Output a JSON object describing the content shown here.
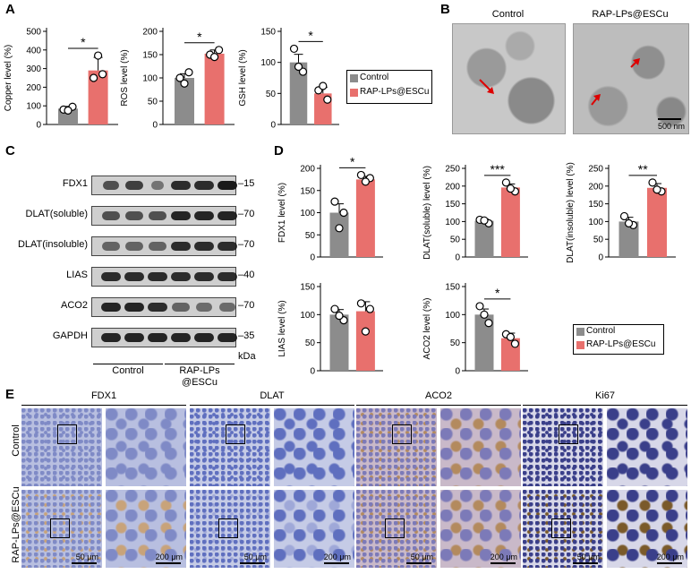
{
  "panels": {
    "A": "A",
    "B": "B",
    "C": "C",
    "D": "D",
    "E": "E"
  },
  "legend": {
    "control": "Control",
    "treated": "RAP-LPs@ESCu",
    "control_color": "#8c8c8c",
    "treated_color": "#e8706d"
  },
  "chart_data": [
    {
      "type": "bar",
      "id": "copper",
      "ylabel": "Copper level (%)",
      "ylim": [
        0,
        500
      ],
      "yticks": [
        0,
        100,
        200,
        300,
        400,
        500
      ],
      "categories": [
        "Control",
        "RAP-LPs@ESCu"
      ],
      "values": [
        85,
        290
      ],
      "errors": [
        12,
        70
      ],
      "points": [
        [
          80,
          95,
          75
        ],
        [
          250,
          270,
          370
        ]
      ],
      "significance": "*"
    },
    {
      "type": "bar",
      "id": "ros",
      "ylabel": "ROS level (%)",
      "ylim": [
        0,
        200
      ],
      "yticks": [
        0,
        50,
        100,
        150,
        200
      ],
      "categories": [
        "Control",
        "RAP-LPs@ESCu"
      ],
      "values": [
        100,
        152
      ],
      "errors": [
        9,
        8
      ],
      "points": [
        [
          100,
          112,
          88
        ],
        [
          150,
          160,
          145
        ]
      ],
      "significance": "*"
    },
    {
      "type": "bar",
      "id": "gsh",
      "ylabel": "GSH level (%)",
      "ylim": [
        0,
        150
      ],
      "yticks": [
        0,
        50,
        100,
        150
      ],
      "categories": [
        "Control",
        "RAP-LPs@ESCu"
      ],
      "values": [
        100,
        50
      ],
      "errors": [
        13,
        10
      ],
      "points": [
        [
          122,
          85,
          93
        ],
        [
          55,
          40,
          62
        ]
      ],
      "significance": "*"
    },
    {
      "type": "bar",
      "id": "fdx1",
      "ylabel": "FDX1 level (%)",
      "ylim": [
        0,
        200
      ],
      "yticks": [
        0,
        50,
        100,
        150,
        200
      ],
      "categories": [
        "Control",
        "RAP-LPs@ESCu"
      ],
      "values": [
        100,
        175
      ],
      "errors": [
        20,
        7
      ],
      "points": [
        [
          125,
          100,
          65
        ],
        [
          185,
          178,
          170
        ]
      ],
      "significance": "*"
    },
    {
      "type": "bar",
      "id": "dlat-soluble",
      "ylabel": "DLAT(soluble) level (%)",
      "ylim": [
        0,
        250
      ],
      "yticks": [
        0,
        50,
        100,
        150,
        200,
        250
      ],
      "categories": [
        "Control",
        "RAP-LPs@ESCu"
      ],
      "values": [
        102,
        196
      ],
      "errors": [
        5,
        10
      ],
      "points": [
        [
          105,
          95,
          103
        ],
        [
          210,
          185,
          193
        ]
      ],
      "significance": "***"
    },
    {
      "type": "bar",
      "id": "dlat-insoluble",
      "ylabel": "DLAT(insoluble) level (%)",
      "ylim": [
        0,
        250
      ],
      "yticks": [
        0,
        50,
        100,
        150,
        200,
        250
      ],
      "categories": [
        "Control",
        "RAP-LPs@ESCu"
      ],
      "values": [
        100,
        195
      ],
      "errors": [
        12,
        12
      ],
      "points": [
        [
          115,
          90,
          95
        ],
        [
          210,
          185,
          190
        ]
      ],
      "significance": "**"
    },
    {
      "type": "bar",
      "id": "lias",
      "ylabel": "LIAS level (%)",
      "ylim": [
        0,
        150
      ],
      "yticks": [
        0,
        50,
        100,
        150
      ],
      "categories": [
        "Control",
        "RAP-LPs@ESCu"
      ],
      "values": [
        100,
        106
      ],
      "errors": [
        9,
        17
      ],
      "points": [
        [
          110,
          90,
          98
        ],
        [
          120,
          110,
          70
        ]
      ],
      "significance": ""
    },
    {
      "type": "bar",
      "id": "aco2",
      "ylabel": "ACO2 level (%)",
      "ylim": [
        0,
        150
      ],
      "yticks": [
        0,
        50,
        100,
        150
      ],
      "categories": [
        "Control",
        "RAP-LPs@ESCu"
      ],
      "values": [
        100,
        58
      ],
      "errors": [
        10,
        9
      ],
      "points": [
        [
          115,
          85,
          100
        ],
        [
          65,
          48,
          60
        ]
      ],
      "significance": "*"
    }
  ],
  "em": {
    "control_title": "Control",
    "treated_title": "RAP-LPs@ESCu",
    "scale": "500 nm"
  },
  "blot": {
    "rows": [
      {
        "name": "FDX1",
        "kda": "15"
      },
      {
        "name": "DLAT(soluble)",
        "kda": "70"
      },
      {
        "name": "DLAT(insoluble)",
        "kda": "70"
      },
      {
        "name": "LIAS",
        "kda": "40"
      },
      {
        "name": "ACO2",
        "kda": "70"
      },
      {
        "name": "GAPDH",
        "kda": "35"
      }
    ],
    "kda_label": "kDa",
    "group_control": "Control",
    "group_treated_line1": "RAP-LPs",
    "group_treated_line2": "@ESCu"
  },
  "ihc": {
    "markers": [
      "FDX1",
      "DLAT",
      "ACO2",
      "Ki67"
    ],
    "row_control": "Control",
    "row_treated": "RAP-LPs@ESCu",
    "scale_low": "50 μm",
    "scale_high": "200 μm"
  }
}
